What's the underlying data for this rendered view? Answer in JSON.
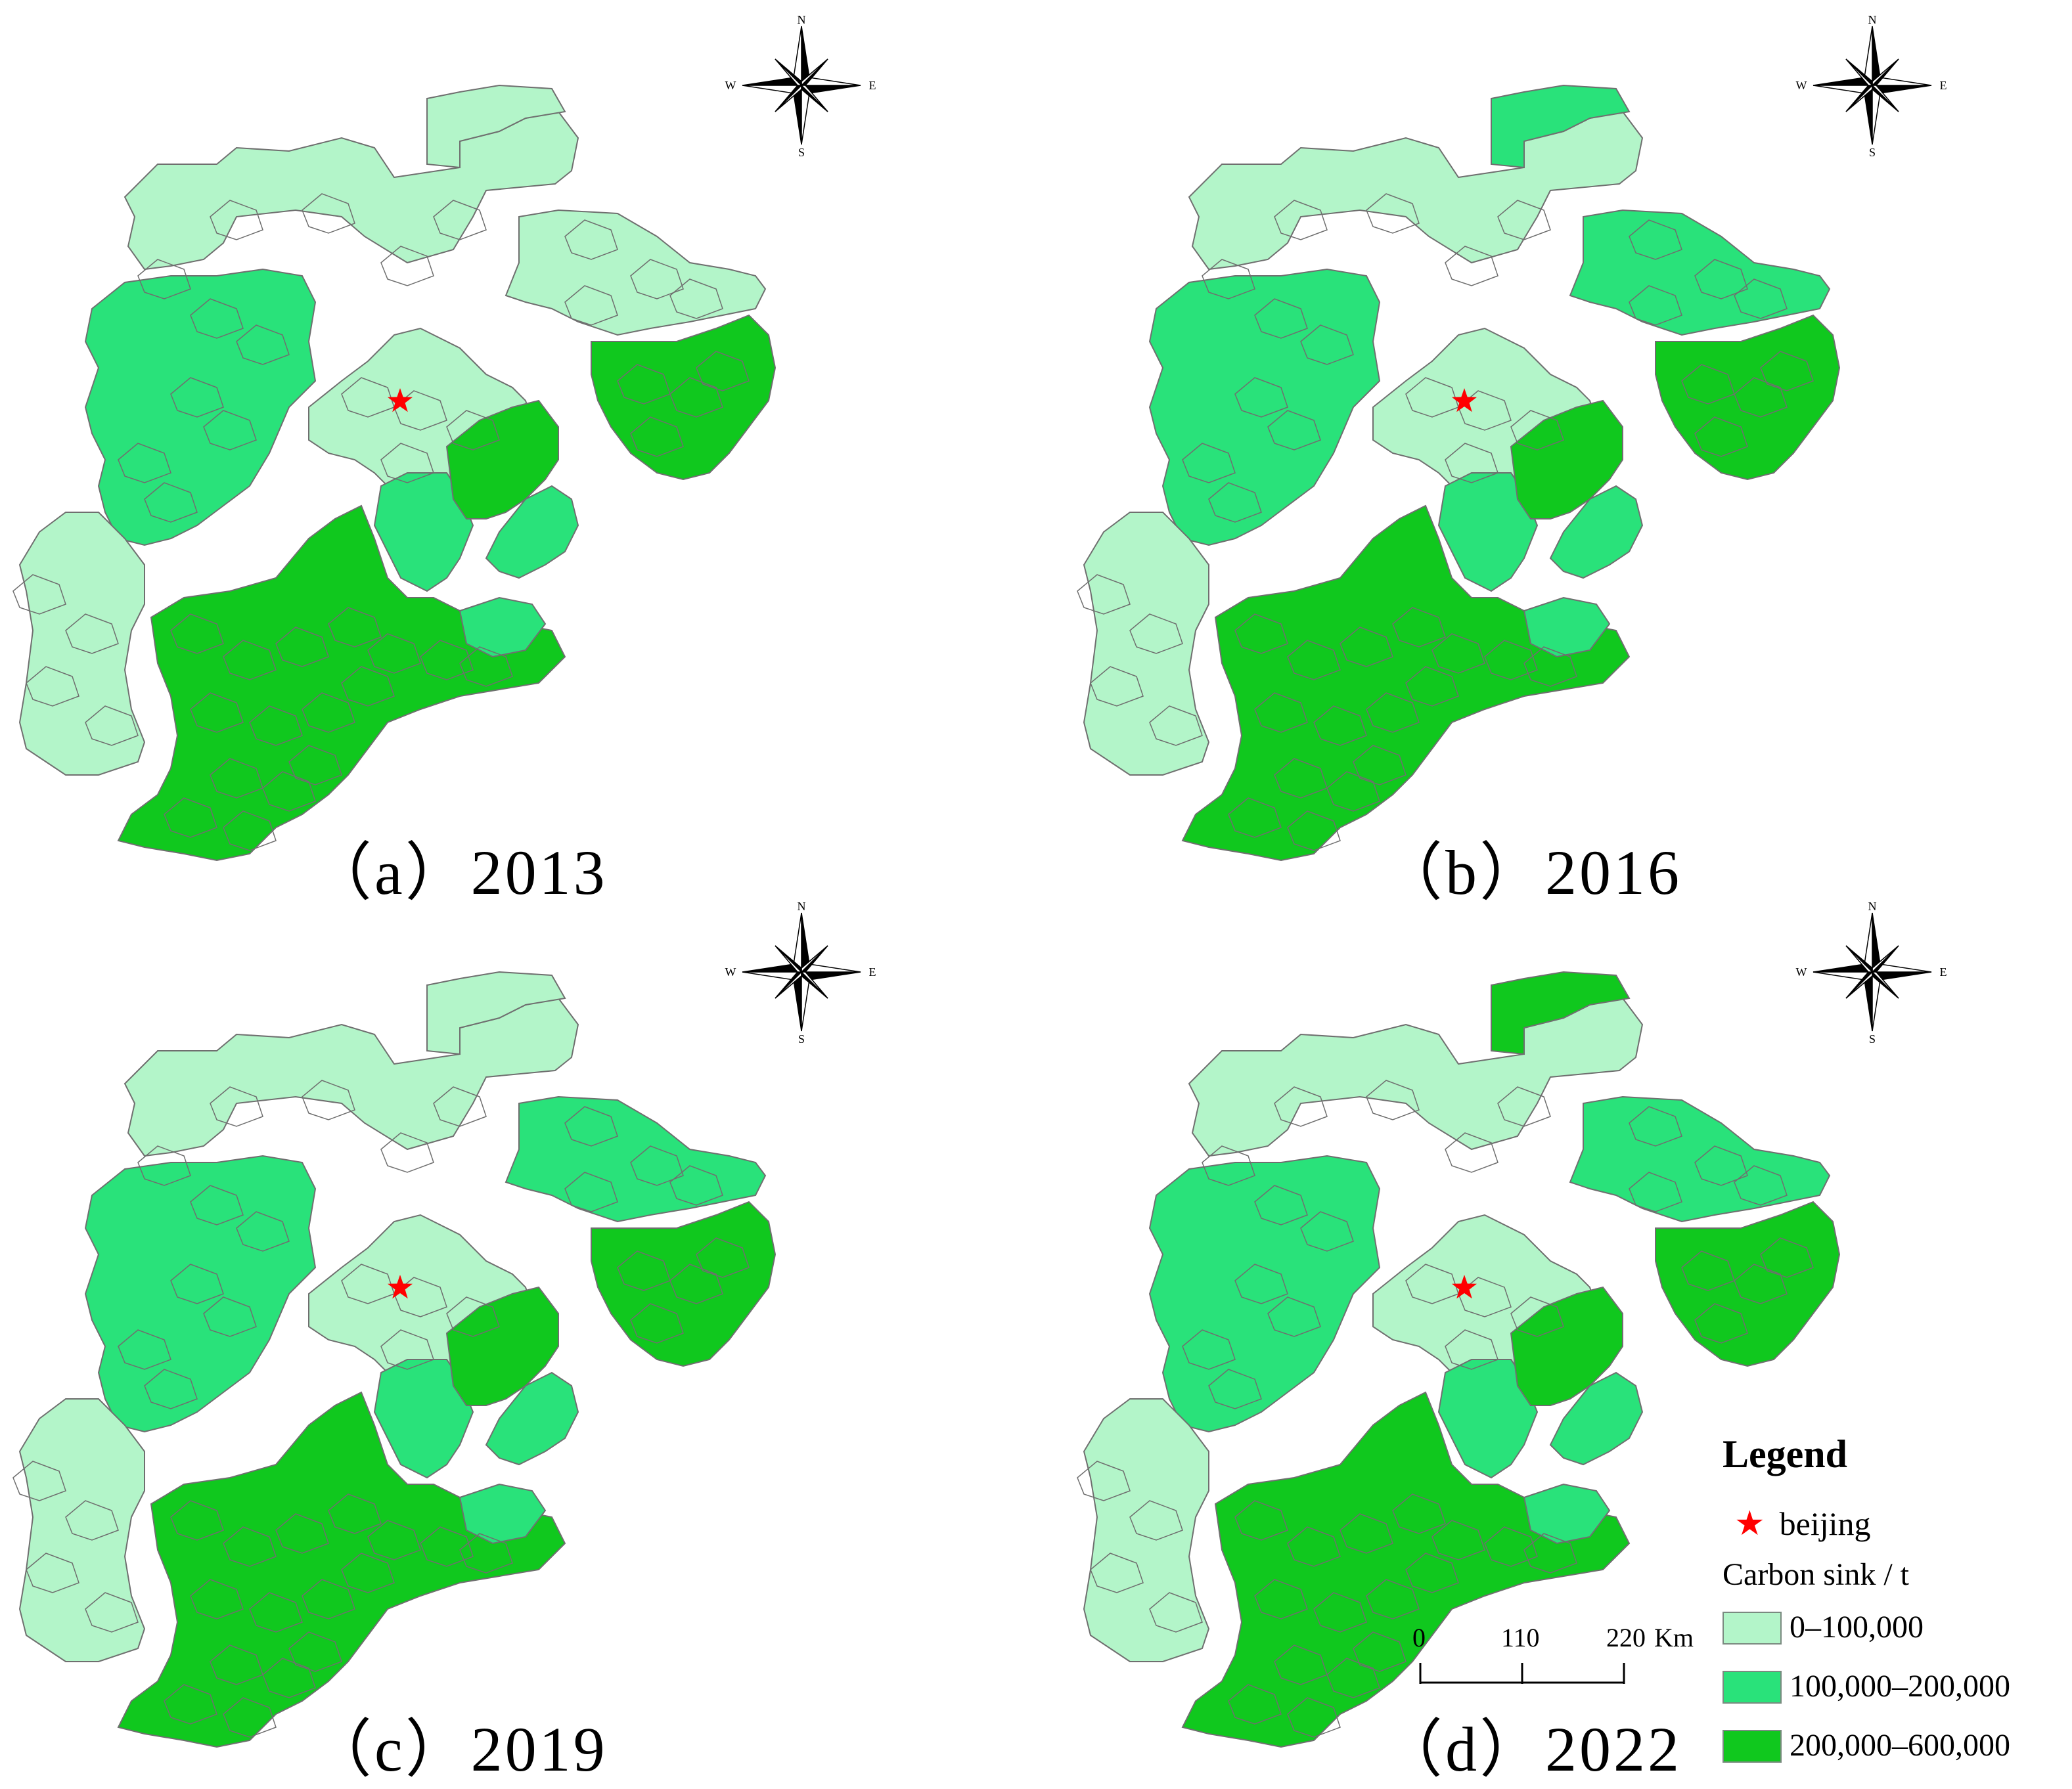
{
  "colors": {
    "low": "#b3f5c9",
    "mid": "#29e27a",
    "high": "#10c81e",
    "border": "#6f6f6f",
    "marker": "#ff0000"
  },
  "panels": [
    {
      "caption": "（a）2013",
      "classes": {
        "zhangjiakou": "low",
        "chengde_n": "low",
        "chengde_s": "low",
        "qinhuangdao": "mid",
        "tangshan": "high",
        "beijing": "low",
        "tianjin": "high",
        "langfang": "mid",
        "west_inner": "mid",
        "hebei_s": "high",
        "hebei_s2": "mid",
        "taihang": "low"
      }
    },
    {
      "caption": "（b）2016",
      "classes": {
        "zhangjiakou": "low",
        "chengde_n": "mid",
        "chengde_s": "mid",
        "qinhuangdao": "mid",
        "tangshan": "high",
        "beijing": "low",
        "tianjin": "high",
        "langfang": "mid",
        "west_inner": "mid",
        "hebei_s": "high",
        "hebei_s2": "mid",
        "taihang": "low"
      }
    },
    {
      "caption": "（c）2019",
      "classes": {
        "zhangjiakou": "low",
        "chengde_n": "low",
        "chengde_s": "mid",
        "qinhuangdao": "mid",
        "tangshan": "high",
        "beijing": "low",
        "tianjin": "high",
        "langfang": "mid",
        "west_inner": "mid",
        "hebei_s": "high",
        "hebei_s2": "mid",
        "taihang": "low"
      }
    },
    {
      "caption": "（d）2022",
      "classes": {
        "zhangjiakou": "low",
        "chengde_n": "high",
        "chengde_s": "mid",
        "qinhuangdao": "mid",
        "tangshan": "high",
        "beijing": "low",
        "tianjin": "high",
        "langfang": "mid",
        "west_inner": "mid",
        "hebei_s": "high",
        "hebei_s2": "mid",
        "taihang": "low"
      }
    }
  ],
  "compass": {
    "n": "N",
    "s": "S",
    "w": "W",
    "e": "E"
  },
  "legend": {
    "title": "Legend",
    "marker_label": "beijing",
    "subtitle": "Carbon sink / t",
    "items": [
      {
        "label": "0–100,000",
        "color": "#b3f5c9"
      },
      {
        "label": "100,000–200,000",
        "color": "#29e27a"
      },
      {
        "label": "200,000–600,000",
        "color": "#10c81e"
      }
    ]
  },
  "scalebar": {
    "ticks": [
      "0",
      "110",
      "220"
    ],
    "unit": "Km"
  }
}
